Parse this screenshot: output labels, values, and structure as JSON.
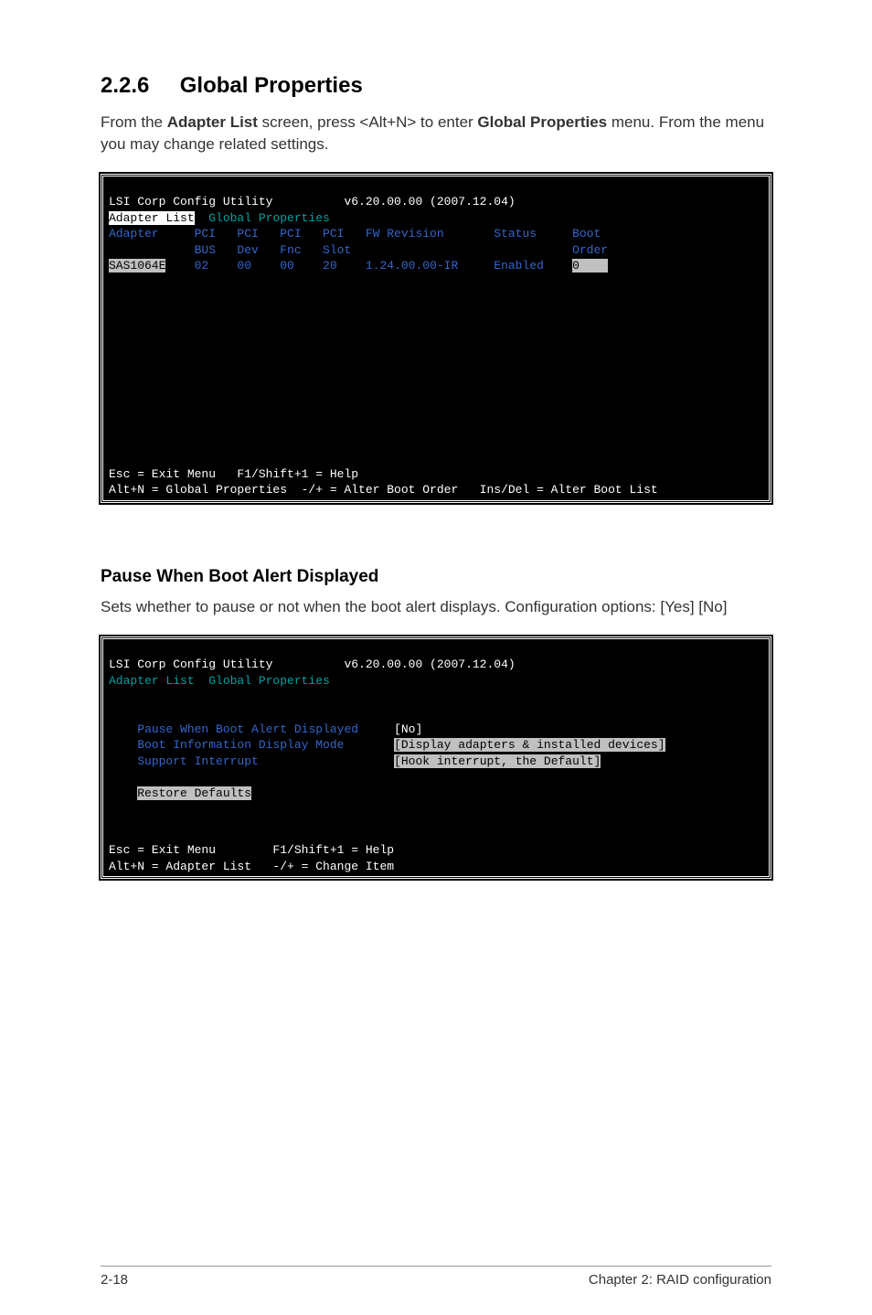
{
  "section": {
    "number": "2.2.6",
    "title": "Global Properties"
  },
  "intro": {
    "prefix": "From the ",
    "bold1": "Adapter List",
    "mid1": " screen, press <Alt+N> to enter ",
    "bold2": "Global Properties",
    "suffix": " menu. From the menu you may change related settings."
  },
  "terminal1": {
    "title": "LSI Corp Config Utility          v6.20.00.00 (2007.12.04)",
    "menu_sel": "Adapter List",
    "menu_plain": "  Global Properties",
    "columns": {
      "adapter": "Adapter",
      "pci_bus": "PCI\nBUS",
      "pci_dev": "PCI\nDev",
      "pci_fnc": "PCI\nFnc",
      "pci_slot": "PCI\nSlot",
      "fw_rev": "FW Revision",
      "status": "Status",
      "boot_order": "Boot\nOrder"
    },
    "row": {
      "adapter": "SAS1064E",
      "pci_bus": "02",
      "pci_dev": "00",
      "pci_fnc": "00",
      "pci_slot": "20",
      "fw_rev": "1.24.00.00-IR",
      "status": "Enabled",
      "boot_order": "0"
    },
    "footer1": "Esc = Exit Menu   F1/Shift+1 = Help",
    "footer2": "Alt+N = Global Properties  -/+ = Alter Boot Order   Ins/Del = Alter Boot List"
  },
  "sub": {
    "heading": "Pause When Boot Alert Displayed",
    "text": "Sets whether to pause or not when the boot alert displays. Configuration options: [Yes] [No]"
  },
  "terminal2": {
    "title": "LSI Corp Config Utility          v6.20.00.00 (2007.12.04)",
    "menu_plain1": "Adapter List  ",
    "menu_sel": "Global Properties",
    "opt1_label": "Pause When Boot Alert Displayed",
    "opt1_val": "[No]",
    "opt2_label": "Boot Information Display Mode",
    "opt2_val": "[Display adapters & installed devices]",
    "opt3_label": "Support Interrupt",
    "opt3_val": "[Hook interrupt, the Default]",
    "opt4": "Restore Defaults",
    "footer1": "Esc = Exit Menu        F1/Shift+1 = Help",
    "footer2": "Alt+N = Adapter List   -/+ = Change Item"
  },
  "page_footer": {
    "left": "2-18",
    "right": "Chapter 2: RAID configuration"
  },
  "colors": {
    "blue": "#3366cc",
    "teal": "#00a0a0",
    "grey_highlight": "#c0c0c0",
    "white": "#ffffff",
    "black": "#000000"
  }
}
